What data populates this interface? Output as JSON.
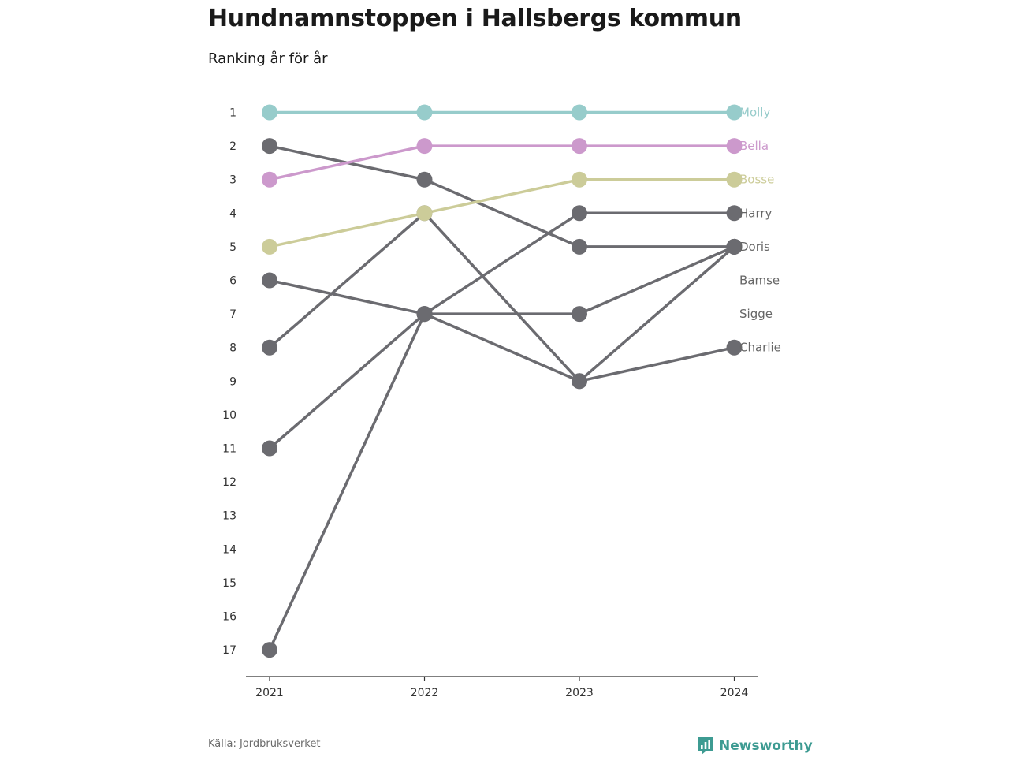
{
  "title": "Hundnamnstoppen i Hallsbergs kommun",
  "subtitle": "Ranking år för år",
  "source": "Källa: Jordbruksverket",
  "brand": {
    "name": "Newsworthy",
    "icon": "newsworthy-logo-icon",
    "color": "#3d9b92"
  },
  "chart_data": {
    "type": "line",
    "x": [
      "2021",
      "2022",
      "2023",
      "2024"
    ],
    "y_ticks": [
      "1",
      "2",
      "3",
      "4",
      "5",
      "6",
      "7",
      "8",
      "9",
      "10",
      "11",
      "12",
      "13",
      "14",
      "15",
      "16",
      "17"
    ],
    "ylim": [
      1,
      17
    ],
    "y_reversed": true,
    "grid": false,
    "legend": "end-labels",
    "series": [
      {
        "name": "Molly",
        "values": [
          1,
          1,
          1,
          1
        ],
        "color": "#97cccb"
      },
      {
        "name": "Bella",
        "values": [
          3,
          2,
          2,
          2
        ],
        "color": "#cc99cc"
      },
      {
        "name": "Bosse",
        "values": [
          5,
          4,
          3,
          3
        ],
        "color": "#cccc99"
      },
      {
        "name": "Harry",
        "values": [
          11,
          7,
          4,
          4
        ],
        "color": "#6b6b70"
      },
      {
        "name": "Doris",
        "values": [
          2,
          3,
          5,
          5
        ],
        "color": "#6b6b70"
      },
      {
        "name": "Bamse",
        "values": [
          8,
          4,
          9,
          5
        ],
        "color": "#6b6b70"
      },
      {
        "name": "Sigge",
        "values": [
          17,
          7,
          7,
          5
        ],
        "color": "#6b6b70"
      },
      {
        "name": "Charlie",
        "values": [
          6,
          7,
          9,
          8
        ],
        "color": "#6b6b70"
      }
    ]
  }
}
